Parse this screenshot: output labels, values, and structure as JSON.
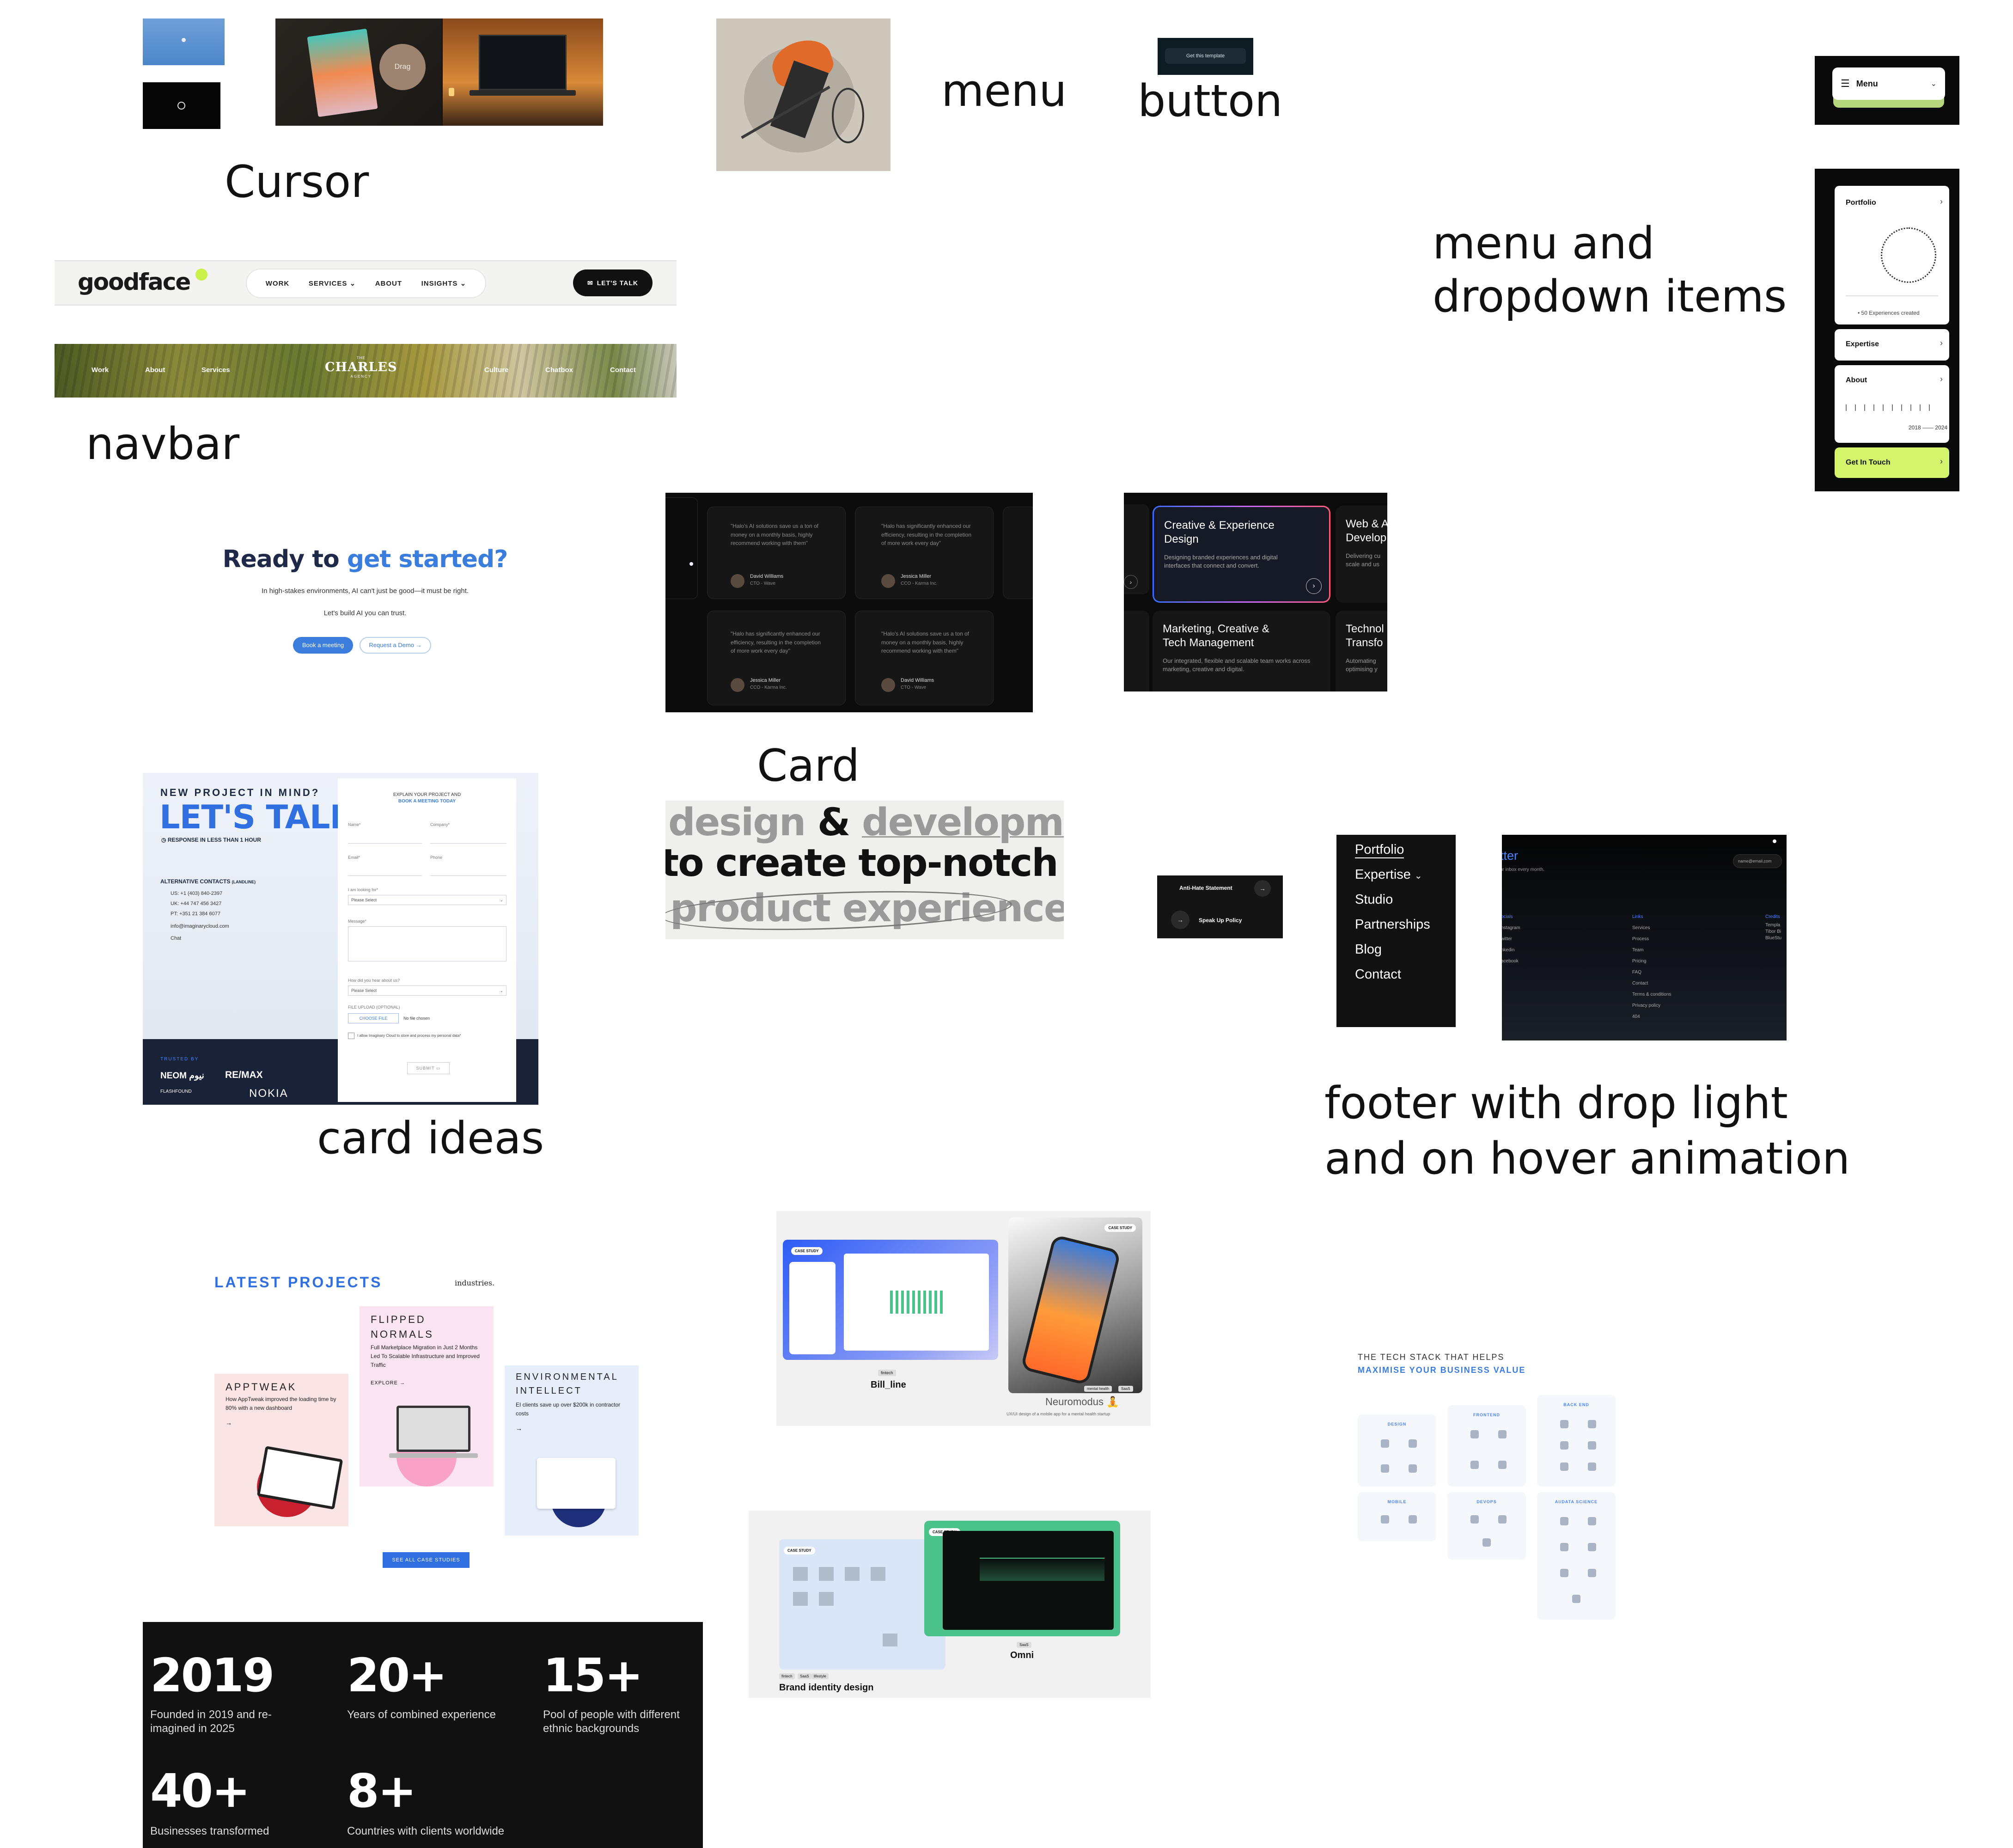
{
  "labels": {
    "cursor": "Cursor",
    "menu": "menu",
    "button": "button",
    "menu_dropdown_line1": "menu and",
    "menu_dropdown_line2": "dropdown items",
    "navbar": "navbar",
    "card": "Card",
    "card_ideas": "card ideas",
    "footer_line1": "footer with drop light",
    "footer_line2": "and on hover animation"
  },
  "cursor_samples": {
    "drag_label": "Drag"
  },
  "button_sample": {
    "label": "Get this template"
  },
  "menu_pill": {
    "label": "Menu"
  },
  "navbar_goodface": {
    "logo": "goodface",
    "links": [
      "WORK",
      "SERVICES",
      "ABOUT",
      "INSIGHTS"
    ],
    "cta": "LET'S TALK"
  },
  "navbar_charles": {
    "left_links": [
      "Work",
      "About",
      "Services"
    ],
    "logo_top": "THE",
    "logo": "CHARLES",
    "logo_bottom": "AGENCY",
    "right_links": [
      "Culture",
      "Chatbox",
      "Contact"
    ]
  },
  "dropdown_menu": {
    "portfolio": "Portfolio",
    "experiences": "50 Experiences created",
    "expertise": "Expertise",
    "about": "About",
    "year_start": "2018",
    "year_end": "2024",
    "get_in_touch": "Get In Touch"
  },
  "cta_card": {
    "title_a": "Ready to",
    "title_b": "get started?",
    "sub1": "In high-stakes environments, AI can't just be good—it must be right.",
    "sub2": "Let's build AI you can trust.",
    "btn_primary": "Book a meeting",
    "btn_secondary": "Request a Demo"
  },
  "testimonials": [
    {
      "quote": "\"Halo's AI solutions save us a ton of money on a monthly basis, highly recommend working with them\"",
      "name": "David Williams",
      "role": "CTO - Wave"
    },
    {
      "quote": "\"Halo has significantly enhanced our efficiency, resulting in the completion of more work every day\"",
      "name": "Jessica Miller",
      "role": "CCO - Karma Inc."
    },
    {
      "quote": "\"Halo has significantly enhanced our efficiency, resulting in the completion of more work every day\"",
      "name": "Jessica Miller",
      "role": "CCO - Karma Inc."
    },
    {
      "quote": "\"Halo's AI solutions save us a ton of money on a monthly basis, highly recommend working with them\"",
      "name": "David Williams",
      "role": "CTO - Wave"
    }
  ],
  "service_cards": [
    {
      "title1": "Creative & Experience",
      "title2": "Design",
      "body": "Designing branded experiences and digital interfaces that connect and convert."
    },
    {
      "title1": "Web & A",
      "title2": "Develop",
      "body": "Delivering cu scale and us"
    },
    {
      "title1": "Marketing, Creative &",
      "title2": "Tech Management",
      "body": "Our integrated, flexible and scalable team works across marketing, creative and digital."
    },
    {
      "title1": "Technol",
      "title2": "Transfo",
      "body": "Automating optimising y"
    }
  ],
  "typo_card": {
    "line1a": "design",
    "line1b": "&",
    "line1c": "development",
    "line2": "to create top-notch",
    "line3": "product experience"
  },
  "lets_talk": {
    "eyebrow": "NEW PROJECT IN MIND?",
    "title": "LET'S TALK",
    "response": "RESPONSE IN LESS THAN 1 HOUR",
    "alt_contacts": "ALTERNATIVE CONTACTS",
    "alt_contacts_note": "(LANDLINE)",
    "contacts": [
      "US: +1 (403) 840-2397",
      "UK: +44 747 456 3427",
      "PT: +351 21 384 6077",
      "info@imaginarycloud.com",
      "Chat"
    ],
    "trusted_by": "TRUSTED BY",
    "brands": [
      "NEOM نيوم",
      "RE/MAX",
      "FLASHFOUND",
      "NOKIA"
    ],
    "form_header1": "EXPLAIN YOUR PROJECT AND",
    "form_header2": "BOOK A MEETING TODAY",
    "fields": {
      "name": "Name*",
      "company": "Company*",
      "email": "Email*",
      "phone": "Phone",
      "looking_for": "I am looking for*",
      "message": "Message*",
      "heard": "How did you hear about us?",
      "select": "Please Select",
      "upload": "FILE UPLOAD (OPTIONAL)",
      "choose": "CHOOSE FILE",
      "nofile": "No file chosen",
      "consent": "I allow Imaginary Cloud to store and process my personal data*",
      "submit": "SUBMIT"
    }
  },
  "anti_hate": {
    "title": "Anti-Hate Statement",
    "link": "Speak Up Policy"
  },
  "footer_menu": {
    "items": [
      "Portfolio",
      "Expertise",
      "Studio",
      "Partnerships",
      "Blog",
      "Contact"
    ]
  },
  "footer_dark": {
    "title": "tter",
    "subtitle": "ur inbox every month.",
    "email_placeholder": "name@email.com",
    "socials_head": "ocials",
    "socials": [
      "nstagram",
      "witter",
      "nkedin",
      "acebook"
    ],
    "links_head": "Links",
    "links": [
      "Services",
      "Process",
      "Team",
      "Pricing",
      "FAQ",
      "Contact",
      "Terms & conditions",
      "Privacy policy",
      "404"
    ],
    "credits_head": "Credits",
    "credits": [
      "Templa",
      "Tibor Bi",
      "BlueStu"
    ]
  },
  "latest_projects": {
    "title": "LATEST PROJECTS",
    "tag": "industries.",
    "projects": [
      {
        "name": "APPTWEAK",
        "desc": "How AppTweak improved the loading time by 80% with a new dashboard"
      },
      {
        "name1": "FLIPPED",
        "name2": "NORMALS",
        "desc": "Full Marketplace Migration in Just 2 Months Led To Scalable Infrastructure and Improved Traffic",
        "explore": "EXPLORE"
      },
      {
        "name1": "ENVIRONMENTAL",
        "name2": "INTELLECT",
        "desc": "EI clients save up over $200k in contractor costs"
      }
    ],
    "cta": "SEE ALL CASE STUDIES"
  },
  "case_studies_a": {
    "left_badge": "CASE STUDY",
    "left_tag": "fintech",
    "left_title": "Bill_line",
    "right_badge": "CASE STUDY",
    "right_tags": [
      "mental health",
      "SaaS"
    ],
    "right_title": "Neuromodus 🧘",
    "right_desc": "UX/UI design of a mobile app for a mental health startup"
  },
  "case_studies_b": {
    "left_badge": "CASE STUDY",
    "left_tags": [
      "fintech",
      "SaaS",
      "lifestyle"
    ],
    "left_title": "Brand identity design",
    "right_badge": "CASE STUDY",
    "right_tag": "SaaS",
    "right_title": "Omni"
  },
  "tech_stack": {
    "line1": "THE TECH STACK THAT HELPS",
    "line2": "MAXIMISE YOUR BUSINESS VALUE",
    "groups": [
      "DESIGN",
      "FRONTEND",
      "BACK END",
      "MOBILE",
      "DEVOPS",
      "AI/DATA SCIENCE"
    ]
  },
  "stats": [
    {
      "num": "2019",
      "text1": "Founded in 2019 and re-",
      "text2": "imagined in 2025"
    },
    {
      "num": "20+",
      "text1": "Years of combined experience",
      "text2": ""
    },
    {
      "num": "15+",
      "text1": "Pool of people with different",
      "text2": "ethnic backgrounds"
    },
    {
      "num": "40+",
      "text1": "Businesses transformed",
      "text2": ""
    },
    {
      "num": "8+",
      "text1": "Countries with clients worldwide",
      "text2": ""
    }
  ],
  "colors": {
    "accent_blue": "#3b7ddd",
    "lime": "#d4f56b",
    "dark": "#111111",
    "card_bg": "#161616"
  }
}
